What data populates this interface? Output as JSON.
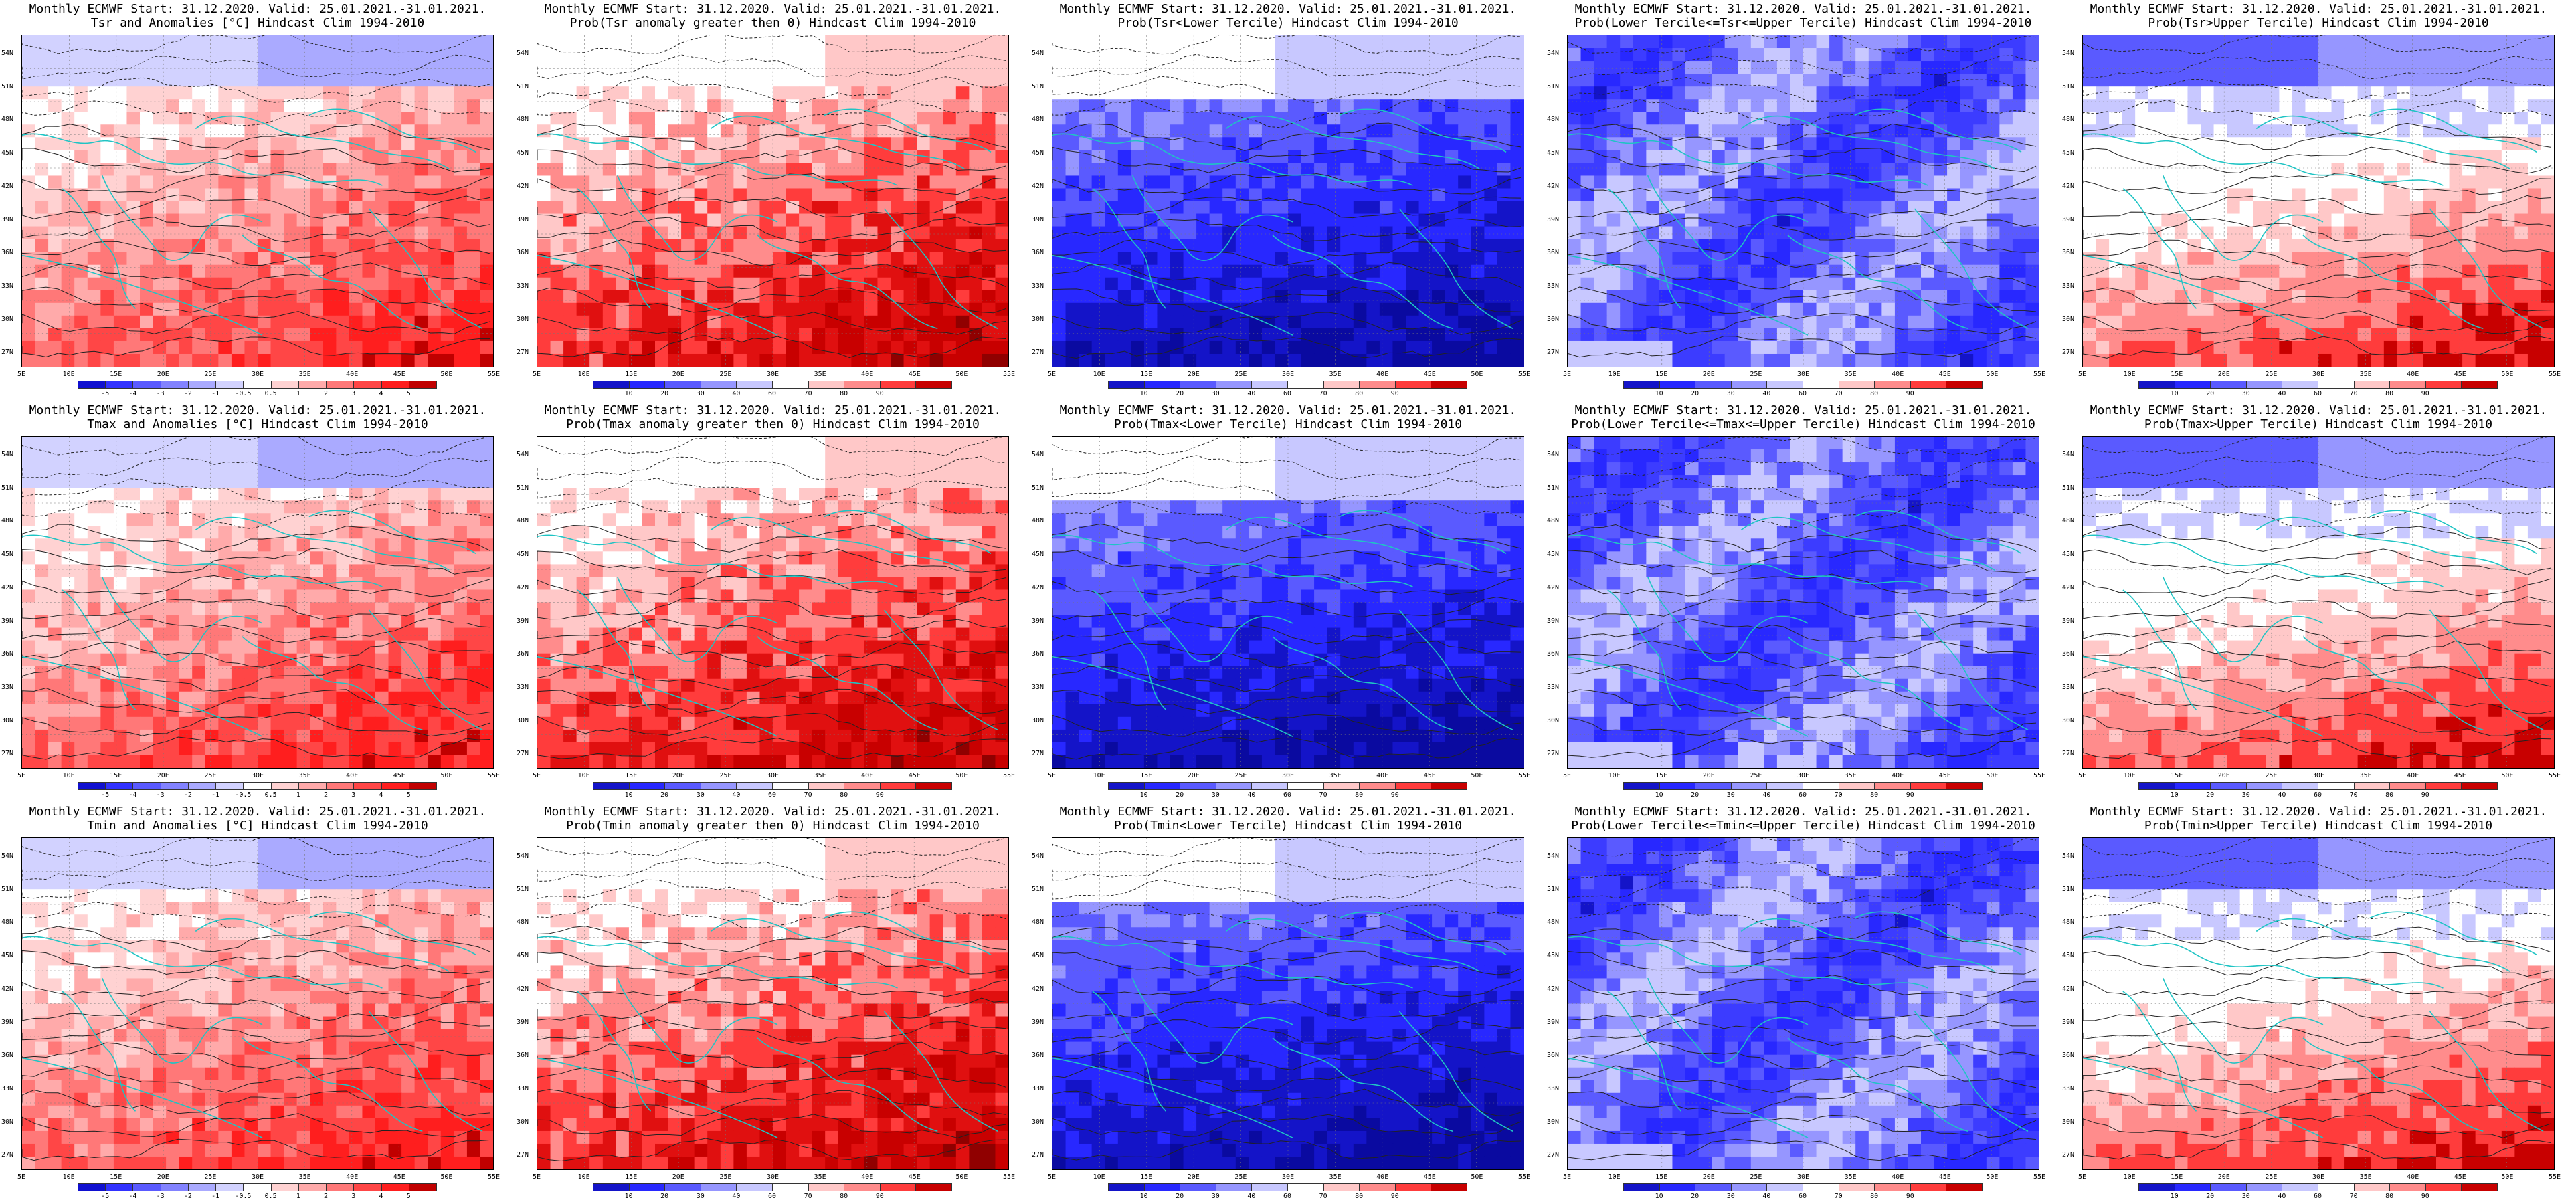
{
  "page": {
    "background": "#ffffff",
    "header_common": "Monthly ECMWF Start: 31.12.2020. Valid: 25.01.2021.-31.01.2021."
  },
  "axes": {
    "lat_labels": [
      "54N",
      "51N",
      "48N",
      "45N",
      "42N",
      "39N",
      "36N",
      "33N",
      "30N",
      "27N"
    ],
    "lon_labels": [
      "5E",
      "10E",
      "15E",
      "20E",
      "25E",
      "30E",
      "35E",
      "40E",
      "45E",
      "50E",
      "55E"
    ]
  },
  "colorbars": {
    "anomaly": {
      "labels": [
        "-5",
        "-4",
        "-3",
        "-2",
        "-1",
        "-0.5",
        "0.5",
        "1",
        "2",
        "3",
        "4",
        "5"
      ],
      "colors": [
        "#1010d0",
        "#3232ff",
        "#5a5aff",
        "#8282ff",
        "#aaaaff",
        "#d2d2ff",
        "#ffffff",
        "#ffd2d2",
        "#ffaaaa",
        "#ff7878",
        "#ff4646",
        "#ff1e1e",
        "#c00000"
      ]
    },
    "probability": {
      "labels": [
        "10",
        "20",
        "30",
        "40",
        "60",
        "70",
        "80",
        "90"
      ],
      "colors": [
        "#1414c8",
        "#2828ff",
        "#5a5aff",
        "#9696ff",
        "#c8c8ff",
        "#ffffff",
        "#ffc8c8",
        "#ff8c8c",
        "#ff3c3c",
        "#c80000"
      ]
    }
  },
  "panels": [
    {
      "id": "r1c1",
      "title_line1": "Monthly ECMWF Start: 31.12.2020. Valid: 25.01.2021.-31.01.2021.",
      "title_line2": "Tsr and Anomalies [°C] Hindcast Clim 1994-2010",
      "colorbar": "anomaly",
      "field_type": "anomaly",
      "field_intensity": 0.55
    },
    {
      "id": "r1c2",
      "title_line1": "Monthly ECMWF Start: 31.12.2020. Valid: 25.01.2021.-31.01.2021.",
      "title_line2": "Prob(Tsr anomaly greater then 0) Hindcast Clim 1994-2010",
      "colorbar": "probability",
      "field_type": "prob_high",
      "field_intensity": 0.75
    },
    {
      "id": "r1c3",
      "title_line1": "Monthly ECMWF Start: 31.12.2020. Valid: 25.01.2021.-31.01.2021.",
      "title_line2": "Prob(Tsr<Lower Tercile) Hindcast Clim 1994-2010",
      "colorbar": "probability",
      "field_type": "prob_low",
      "field_intensity": 0.9
    },
    {
      "id": "r1c4",
      "title_line1": "Monthly ECMWF Start: 31.12.2020. Valid: 25.01.2021.-31.01.2021.",
      "title_line2": "Prob(Lower Tercile<=Tsr<=Upper Tercile) Hindcast Clim 1994-2010",
      "colorbar": "probability",
      "field_type": "prob_mid",
      "field_intensity": 0.7
    },
    {
      "id": "r1c5",
      "title_line1": "Monthly ECMWF Start: 31.12.2020. Valid: 25.01.2021.-31.01.2021.",
      "title_line2": "Prob(Tsr>Upper Tercile) Hindcast Clim 1994-2010",
      "colorbar": "probability",
      "field_type": "prob_upper",
      "field_intensity": 0.6
    },
    {
      "id": "r2c1",
      "title_line1": "Monthly ECMWF Start: 31.12.2020. Valid: 25.01.2021.-31.01.2021.",
      "title_line2": "Tmax and Anomalies [°C] Hindcast Clim 1994-2010",
      "colorbar": "anomaly",
      "field_type": "anomaly",
      "field_intensity": 0.5
    },
    {
      "id": "r2c2",
      "title_line1": "Monthly ECMWF Start: 31.12.2020. Valid: 25.01.2021.-31.01.2021.",
      "title_line2": "Prob(Tmax anomaly greater then 0) Hindcast Clim 1994-2010",
      "colorbar": "probability",
      "field_type": "prob_high",
      "field_intensity": 0.7
    },
    {
      "id": "r2c3",
      "title_line1": "Monthly ECMWF Start: 31.12.2020. Valid: 25.01.2021.-31.01.2021.",
      "title_line2": "Prob(Tmax<Lower Tercile) Hindcast Clim 1994-2010",
      "colorbar": "probability",
      "field_type": "prob_low",
      "field_intensity": 0.85
    },
    {
      "id": "r2c4",
      "title_line1": "Monthly ECMWF Start: 31.12.2020. Valid: 25.01.2021.-31.01.2021.",
      "title_line2": "Prob(Lower Tercile<=Tmax<=Upper Tercile) Hindcast Clim 1994-2010",
      "colorbar": "probability",
      "field_type": "prob_mid",
      "field_intensity": 0.65
    },
    {
      "id": "r2c5",
      "title_line1": "Monthly ECMWF Start: 31.12.2020. Valid: 25.01.2021.-31.01.2021.",
      "title_line2": "Prob(Tmax>Upper Tercile) Hindcast Clim 1994-2010",
      "colorbar": "probability",
      "field_type": "prob_upper",
      "field_intensity": 0.6
    },
    {
      "id": "r3c1",
      "title_line1": "Monthly ECMWF Start: 31.12.2020. Valid: 25.01.2021.-31.01.2021.",
      "title_line2": "Tmin and Anomalies [°C] Hindcast Clim 1994-2010",
      "colorbar": "anomaly",
      "field_type": "anomaly",
      "field_intensity": 0.5
    },
    {
      "id": "r3c2",
      "title_line1": "Monthly ECMWF Start: 31.12.2020. Valid: 25.01.2021.-31.01.2021.",
      "title_line2": "Prob(Tmin anomaly greater then 0) Hindcast Clim 1994-2010",
      "colorbar": "probability",
      "field_type": "prob_high",
      "field_intensity": 0.75
    },
    {
      "id": "r3c3",
      "title_line1": "Monthly ECMWF Start: 31.12.2020. Valid: 25.01.2021.-31.01.2021.",
      "title_line2": "Prob(Tmin<Lower Tercile) Hindcast Clim 1994-2010",
      "colorbar": "probability",
      "field_type": "prob_low",
      "field_intensity": 0.85
    },
    {
      "id": "r3c4",
      "title_line1": "Monthly ECMWF Start: 31.12.2020. Valid: 25.01.2021.-31.01.2021.",
      "title_line2": "Prob(Lower Tercile<=Tmin<=Upper Tercile) Hindcast Clim 1994-2010",
      "colorbar": "probability",
      "field_type": "prob_mid",
      "field_intensity": 0.7
    },
    {
      "id": "r3c5",
      "title_line1": "Monthly ECMWF Start: 31.12.2020. Valid: 25.01.2021.-31.01.2021.",
      "title_line2": "Prob(Tmin>Upper Tercile) Hindcast Clim 1994-2010",
      "colorbar": "probability",
      "field_type": "prob_upper",
      "field_intensity": 0.55
    }
  ]
}
